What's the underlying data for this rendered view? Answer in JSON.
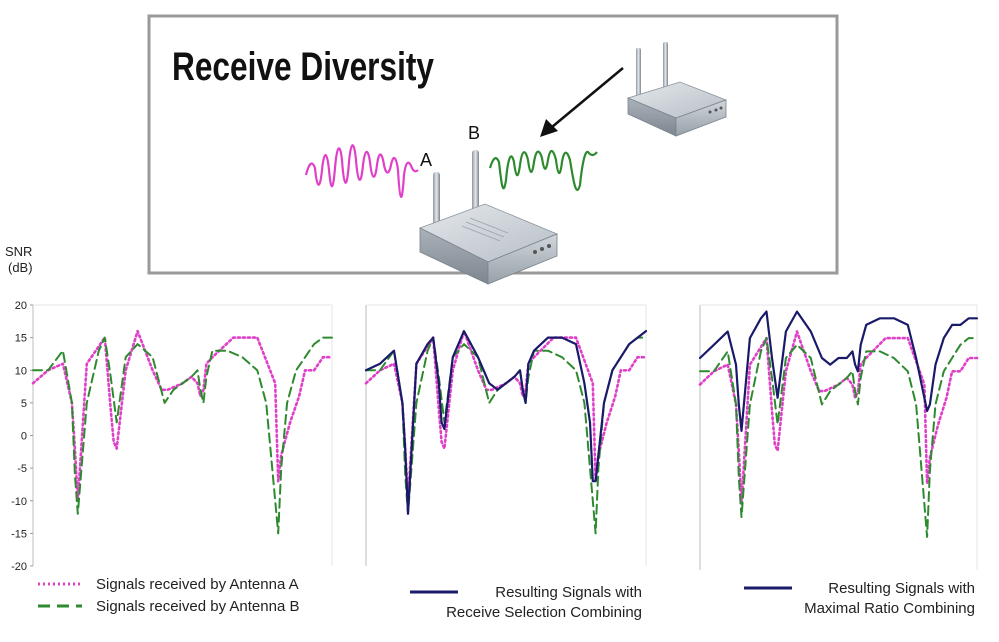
{
  "illustration": {
    "title": "Receive Diversity",
    "antenna_a_label": "A",
    "antenna_b_label": "B",
    "colors": {
      "signal_a": "#e040c8",
      "signal_b": "#2e8a2e",
      "frame": "#9a9a9a"
    },
    "icons": [
      "router-receiver-icon",
      "router-transmitter-icon",
      "arrow-icon"
    ]
  },
  "axis": {
    "ylabel_line1": "SNR",
    "ylabel_line2": "(dB)",
    "yticks": [
      "20",
      "15",
      "10",
      "5",
      "0",
      "-5",
      "-10",
      "-15",
      "-20"
    ]
  },
  "legends": {
    "panel1": {
      "line1": "Signals received by Antenna A",
      "line2": "Signals received by Antenna B"
    },
    "panel2": {
      "line1": "Resulting Signals with",
      "line2": "Receive Selection Combining"
    },
    "panel3": {
      "line1": "Resulting Signals with",
      "line2": "Maximal Ratio Combining"
    }
  },
  "chart_data": [
    {
      "type": "line",
      "ylabel": "SNR (dB)",
      "ylim": [
        -20,
        20
      ],
      "series": [
        {
          "name": "Signals received by Antenna A",
          "color": "#e040c8",
          "style": "dotted",
          "x": [
            0,
            5,
            10,
            13,
            14,
            15,
            18,
            24,
            26,
            27,
            28,
            31,
            35,
            40,
            43,
            45,
            50,
            53,
            55,
            56,
            57,
            58,
            60,
            67,
            75,
            81,
            82,
            83,
            86,
            89,
            91,
            94,
            97,
            100
          ],
          "y": [
            8,
            10,
            11,
            5,
            -2,
            -10,
            11,
            15,
            4,
            -1,
            -2,
            10,
            16,
            10,
            7,
            7,
            8,
            9,
            8,
            6,
            7,
            11,
            12,
            15,
            15,
            8,
            -7,
            -3,
            2,
            6,
            10,
            10,
            12,
            12
          ]
        },
        {
          "name": "Signals received by Antenna B",
          "color": "#2e8a2e",
          "style": "dashed",
          "x": [
            0,
            5,
            10,
            13,
            14,
            15,
            18,
            22,
            24,
            26,
            28,
            31,
            35,
            40,
            44,
            47,
            50,
            53,
            55,
            56,
            57,
            58,
            60,
            65,
            70,
            75,
            78,
            80,
            82,
            83,
            85,
            88,
            91,
            94,
            97,
            100
          ],
          "y": [
            10,
            10,
            13,
            5,
            -6,
            -12,
            5,
            13,
            15,
            9,
            2,
            12,
            14,
            12,
            5,
            7,
            8,
            9,
            10,
            7,
            5,
            9,
            13,
            13,
            12,
            10,
            5,
            -5,
            -15,
            -5,
            5,
            10,
            12,
            14,
            15,
            15
          ]
        }
      ]
    },
    {
      "type": "line",
      "ylim": [
        -20,
        20
      ],
      "series": [
        {
          "name": "Signals received by Antenna A",
          "color": "#e040c8",
          "style": "dotted",
          "x": [
            0,
            5,
            10,
            13,
            14,
            15,
            18,
            24,
            26,
            27,
            28,
            31,
            35,
            40,
            43,
            45,
            50,
            53,
            55,
            56,
            57,
            58,
            60,
            67,
            75,
            81,
            82,
            83,
            86,
            89,
            91,
            94,
            97,
            100
          ],
          "y": [
            8,
            10,
            11,
            5,
            -2,
            -10,
            11,
            15,
            4,
            -1,
            -2,
            10,
            16,
            10,
            7,
            7,
            8,
            9,
            8,
            6,
            7,
            11,
            12,
            15,
            15,
            8,
            -7,
            -3,
            2,
            6,
            10,
            10,
            12,
            12
          ]
        },
        {
          "name": "Signals received by Antenna B",
          "color": "#2e8a2e",
          "style": "dashed",
          "x": [
            0,
            5,
            10,
            13,
            14,
            15,
            18,
            22,
            24,
            26,
            28,
            31,
            35,
            40,
            44,
            47,
            50,
            53,
            55,
            56,
            57,
            58,
            60,
            65,
            70,
            75,
            78,
            80,
            82,
            83,
            85,
            88,
            91,
            94,
            97,
            100
          ],
          "y": [
            10,
            10,
            13,
            5,
            -6,
            -12,
            5,
            13,
            15,
            9,
            2,
            12,
            14,
            12,
            5,
            7,
            8,
            9,
            10,
            7,
            5,
            9,
            13,
            13,
            12,
            10,
            5,
            -5,
            -15,
            -5,
            5,
            10,
            12,
            14,
            15,
            15
          ]
        },
        {
          "name": "Resulting Signals with Receive Selection Combining",
          "color": "#1a1a6a",
          "style": "solid",
          "x": [
            0,
            5,
            10,
            13,
            14,
            15,
            18,
            22,
            24,
            26,
            27,
            28,
            31,
            35,
            40,
            44,
            47,
            50,
            53,
            55,
            56,
            57,
            58,
            60,
            65,
            70,
            75,
            78,
            80,
            81,
            82,
            83,
            85,
            88,
            91,
            94,
            97,
            100
          ],
          "y": [
            10,
            11,
            13,
            5,
            -2,
            -12,
            11,
            14,
            15,
            8,
            2,
            1,
            12,
            16,
            12,
            8,
            7,
            8,
            9,
            10,
            7,
            5,
            11,
            13,
            15,
            15,
            14,
            8,
            2,
            -7,
            -7,
            -3,
            5,
            10,
            12,
            14,
            15,
            16
          ]
        }
      ]
    },
    {
      "type": "line",
      "ylim": [
        -20,
        20
      ],
      "series": [
        {
          "name": "Signals received by Antenna A",
          "color": "#e040c8",
          "style": "dotted",
          "x": [
            0,
            5,
            10,
            13,
            14,
            15,
            18,
            24,
            26,
            27,
            28,
            31,
            35,
            40,
            43,
            45,
            50,
            53,
            55,
            56,
            57,
            58,
            60,
            67,
            75,
            81,
            82,
            83,
            86,
            89,
            91,
            94,
            97,
            100
          ],
          "y": [
            8,
            10,
            11,
            5,
            -2,
            -10,
            11,
            15,
            4,
            -1,
            -2,
            10,
            16,
            10,
            7,
            7,
            8,
            9,
            8,
            6,
            7,
            11,
            12,
            15,
            15,
            8,
            -7,
            -3,
            2,
            6,
            10,
            10,
            12,
            12
          ]
        },
        {
          "name": "Signals received by Antenna B",
          "color": "#2e8a2e",
          "style": "dashed",
          "x": [
            0,
            5,
            10,
            13,
            14,
            15,
            18,
            22,
            24,
            26,
            28,
            31,
            35,
            40,
            44,
            47,
            50,
            53,
            55,
            56,
            57,
            58,
            60,
            65,
            70,
            75,
            78,
            80,
            82,
            83,
            85,
            88,
            91,
            94,
            97,
            100
          ],
          "y": [
            10,
            10,
            13,
            5,
            -6,
            -12,
            5,
            13,
            15,
            9,
            2,
            12,
            14,
            12,
            5,
            7,
            8,
            9,
            10,
            7,
            5,
            9,
            13,
            13,
            12,
            10,
            5,
            -5,
            -15,
            -5,
            5,
            10,
            12,
            14,
            15,
            15
          ]
        },
        {
          "name": "Resulting Signals with Maximal Ratio Combining",
          "color": "#1a1a6a",
          "style": "solid",
          "x": [
            0,
            5,
            10,
            13,
            14,
            15,
            18,
            22,
            24,
            26,
            28,
            31,
            35,
            40,
            44,
            47,
            50,
            53,
            55,
            56,
            57,
            58,
            60,
            65,
            70,
            75,
            78,
            80,
            82,
            83,
            85,
            88,
            91,
            94,
            97,
            100
          ],
          "y": [
            12,
            14,
            16,
            11,
            5,
            1,
            15,
            18,
            19,
            12,
            6,
            16,
            19,
            16,
            12,
            11,
            12,
            12,
            13,
            11,
            10,
            14,
            17,
            18,
            18,
            17,
            12,
            8,
            4,
            5,
            11,
            15,
            17,
            17,
            18,
            18
          ]
        }
      ]
    }
  ]
}
